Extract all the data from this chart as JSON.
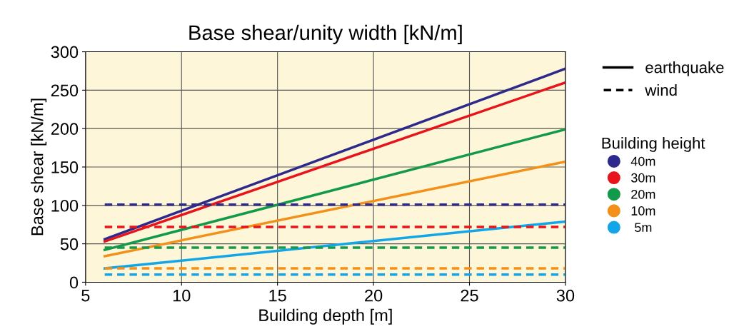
{
  "chart_data": {
    "type": "line",
    "title": "Base shear/unity width [kN/m]",
    "xlabel": "Building depth [m]",
    "ylabel": "Base shear [kN/m]",
    "legend_title": "Building height",
    "x": [
      6,
      30
    ],
    "series": [
      {
        "name": "40m",
        "color": "#2e2a8c",
        "values": [
          56,
          278
        ],
        "line_style": "solid"
      },
      {
        "name": "30m",
        "color": "#e8141c",
        "values": [
          53,
          260
        ],
        "line_style": "solid"
      },
      {
        "name": "20m",
        "color": "#12994a",
        "values": [
          42,
          199
        ],
        "line_style": "solid"
      },
      {
        "name": "10m",
        "color": "#f39019",
        "values": [
          34,
          157
        ],
        "line_style": "solid"
      },
      {
        "name": " 5m",
        "color": "#12a6e8",
        "values": [
          18,
          79
        ],
        "line_style": "solid"
      },
      {
        "color": "#2e2a8c",
        "values": [
          101,
          101
        ],
        "line_style": "dashed"
      },
      {
        "color": "#e8141c",
        "values": [
          72,
          72
        ],
        "line_style": "dashed"
      },
      {
        "color": "#12994a",
        "values": [
          45,
          45
        ],
        "line_style": "dashed"
      },
      {
        "color": "#f39019",
        "values": [
          18,
          18
        ],
        "line_style": "dashed"
      },
      {
        "color": "#12a6e8",
        "values": [
          10,
          10
        ],
        "line_style": "dashed"
      }
    ],
    "annotations": [
      "earthquake",
      "wind"
    ],
    "xlim": [
      5,
      30
    ],
    "xticks": [
      5,
      10,
      15,
      20,
      25,
      30
    ],
    "ylim": [
      0,
      300
    ],
    "yticks": [
      0,
      50,
      100,
      150,
      200,
      250,
      300
    ],
    "grid": true,
    "legend": "right",
    "marker": "none"
  }
}
